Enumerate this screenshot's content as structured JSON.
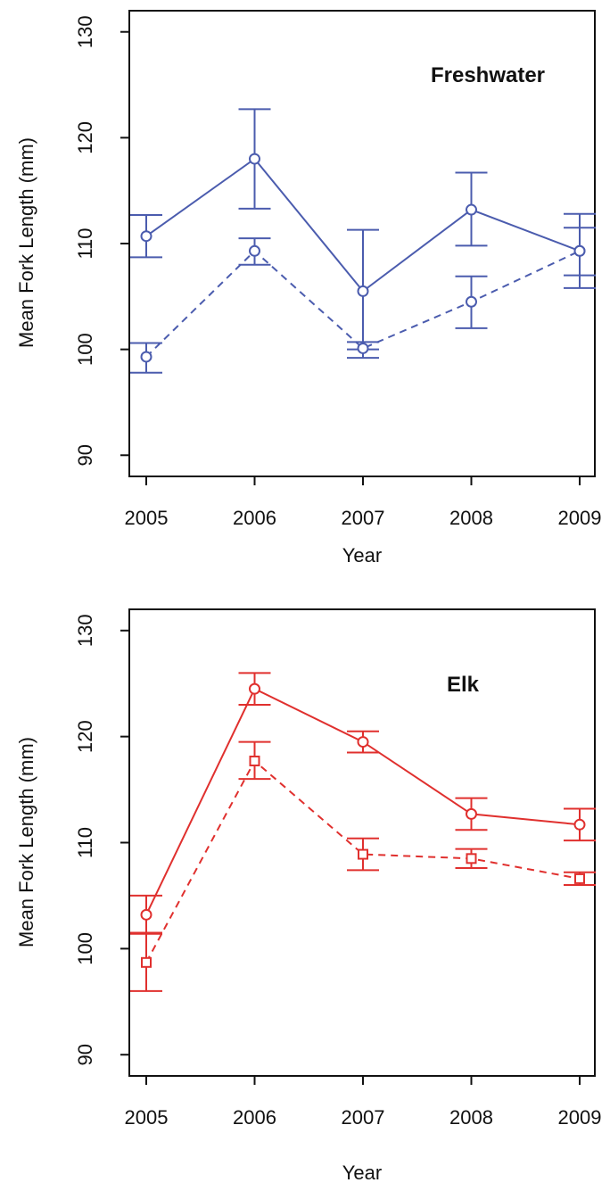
{
  "chart_data": [
    {
      "type": "line",
      "title": "Freshwater",
      "xlabel": "Year",
      "ylabel": "Mean Fork Length (mm)",
      "categories": [
        "2005",
        "2006",
        "2007",
        "2008",
        "2009"
      ],
      "yticks": [
        "90",
        "100",
        "110",
        "120",
        "130"
      ],
      "ylim": [
        88,
        132
      ],
      "color": "#4b5cae",
      "series": [
        {
          "line_style": "solid",
          "marker": "circle",
          "values": [
            110.7,
            118.0,
            105.5,
            113.2,
            109.3
          ],
          "err_low": [
            108.7,
            113.3,
            100.0,
            109.8,
            105.8
          ],
          "err_high": [
            112.7,
            122.7,
            111.3,
            116.7,
            112.8
          ]
        },
        {
          "line_style": "dashed",
          "marker": "circle",
          "values": [
            99.3,
            109.3,
            100.1,
            104.5,
            109.3
          ],
          "err_low": [
            97.8,
            108.0,
            99.2,
            102.0,
            107.0
          ],
          "err_high": [
            100.6,
            110.5,
            100.7,
            106.9,
            111.5
          ]
        }
      ]
    },
    {
      "type": "line",
      "title": "Elk",
      "xlabel": "Year",
      "ylabel": "Mean Fork Length (mm)",
      "categories": [
        "2005",
        "2006",
        "2007",
        "2008",
        "2009"
      ],
      "yticks": [
        "90",
        "100",
        "110",
        "120",
        "130"
      ],
      "ylim": [
        88,
        132
      ],
      "color": "#e0302e",
      "series": [
        {
          "line_style": "solid",
          "marker": "circle",
          "values": [
            103.2,
            124.5,
            119.5,
            112.7,
            111.7
          ],
          "err_low": [
            101.4,
            123.0,
            118.5,
            111.2,
            110.2
          ],
          "err_high": [
            105.0,
            126.0,
            120.5,
            114.2,
            113.2
          ]
        },
        {
          "line_style": "dashed",
          "marker": "square",
          "values": [
            98.7,
            117.7,
            108.9,
            108.5,
            106.6
          ],
          "err_low": [
            96.0,
            116.0,
            107.4,
            107.6,
            106.0
          ],
          "err_high": [
            101.5,
            119.5,
            110.4,
            109.4,
            107.2
          ]
        }
      ]
    }
  ]
}
